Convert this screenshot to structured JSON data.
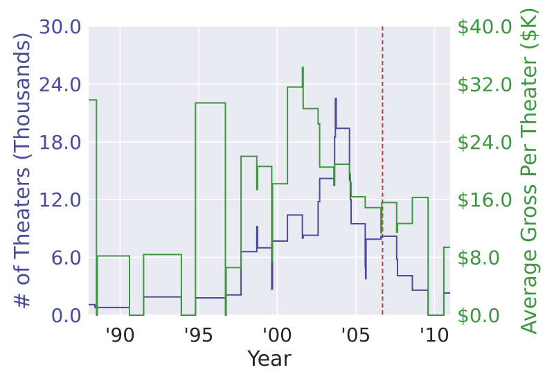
{
  "chart_data": {
    "type": "line",
    "title": "",
    "xlabel": "Year",
    "ylabel_left": "# of Theaters (Thousands)",
    "ylabel_right": "Average Gross Per Theater ($K)",
    "xlim": [
      1988,
      2011
    ],
    "ylim_left": [
      0,
      30
    ],
    "ylim_right": [
      0,
      40
    ],
    "grid": true,
    "x_ticks": [
      {
        "value": 1990,
        "label": "'90"
      },
      {
        "value": 1995,
        "label": "'95"
      },
      {
        "value": 2000,
        "label": "'00"
      },
      {
        "value": 2005,
        "label": "'05"
      },
      {
        "value": 2010,
        "label": "'10"
      }
    ],
    "y_ticks_left": [
      {
        "value": 0,
        "label": "0.0"
      },
      {
        "value": 6,
        "label": "6.0"
      },
      {
        "value": 12,
        "label": "12.0"
      },
      {
        "value": 18,
        "label": "18.0"
      },
      {
        "value": 24,
        "label": "24.0"
      },
      {
        "value": 30,
        "label": "30.0"
      }
    ],
    "y_ticks_right": [
      {
        "value": 0,
        "label": "$0.0"
      },
      {
        "value": 8,
        "label": "$8.0"
      },
      {
        "value": 16,
        "label": "$16.0"
      },
      {
        "value": 24,
        "label": "$24.0"
      },
      {
        "value": 32,
        "label": "$32.0"
      },
      {
        "value": 40,
        "label": "$40.0"
      }
    ],
    "reference_line": {
      "x": 2006.7,
      "style": "dashed",
      "color": "#b5403b"
    },
    "series": [
      {
        "name": "# of Theaters (Thousands)",
        "axis": "left",
        "color": "#4b4b9c",
        "points": [
          [
            1988.0,
            1.1
          ],
          [
            1988.4,
            1.1
          ],
          [
            1988.4,
            0.8
          ],
          [
            1990.6,
            0.8
          ],
          [
            1990.6,
            0.0
          ],
          [
            1991.5,
            0.0
          ],
          [
            1991.5,
            1.9
          ],
          [
            1993.9,
            1.9
          ],
          [
            1993.9,
            0.0
          ],
          [
            1994.8,
            0.0
          ],
          [
            1994.8,
            1.8
          ],
          [
            1996.7,
            1.8
          ],
          [
            1996.7,
            2.1
          ],
          [
            1997.7,
            2.1
          ],
          [
            1997.7,
            6.6
          ],
          [
            1998.7,
            6.6
          ],
          [
            1998.7,
            9.2
          ],
          [
            1998.75,
            9.2
          ],
          [
            1998.75,
            7.0
          ],
          [
            1999.65,
            7.0
          ],
          [
            1999.65,
            2.7
          ],
          [
            1999.7,
            2.7
          ],
          [
            1999.7,
            7.7
          ],
          [
            2000.65,
            7.7
          ],
          [
            2000.65,
            10.4
          ],
          [
            2001.6,
            10.4
          ],
          [
            2001.6,
            8.0
          ],
          [
            2001.65,
            8.0
          ],
          [
            2001.65,
            8.3
          ],
          [
            2002.6,
            8.3
          ],
          [
            2002.6,
            11.8
          ],
          [
            2002.7,
            11.8
          ],
          [
            2002.7,
            14.2
          ],
          [
            2003.6,
            14.2
          ],
          [
            2003.6,
            13.5
          ],
          [
            2003.65,
            13.5
          ],
          [
            2003.65,
            18.5
          ],
          [
            2003.7,
            18.5
          ],
          [
            2003.7,
            22.5
          ],
          [
            2003.75,
            22.5
          ],
          [
            2003.75,
            19.4
          ],
          [
            2004.6,
            19.4
          ],
          [
            2004.6,
            14.0
          ],
          [
            2004.65,
            14.0
          ],
          [
            2004.65,
            12.0
          ],
          [
            2004.7,
            12.0
          ],
          [
            2004.7,
            9.5
          ],
          [
            2005.6,
            9.5
          ],
          [
            2005.6,
            5.0
          ],
          [
            2005.62,
            5.0
          ],
          [
            2005.62,
            3.8
          ],
          [
            2005.65,
            3.8
          ],
          [
            2005.65,
            7.9
          ],
          [
            2006.6,
            7.9
          ],
          [
            2006.6,
            8.2
          ],
          [
            2007.6,
            8.2
          ],
          [
            2007.6,
            5.8
          ],
          [
            2007.65,
            5.8
          ],
          [
            2007.65,
            4.1
          ],
          [
            2008.6,
            4.1
          ],
          [
            2008.6,
            2.6
          ],
          [
            2009.6,
            2.6
          ],
          [
            2009.6,
            0.0
          ],
          [
            2010.6,
            0.0
          ],
          [
            2010.6,
            2.3
          ],
          [
            2011.0,
            2.3
          ]
        ]
      },
      {
        "name": "Average Gross Per Theater ($K)",
        "axis": "right",
        "color": "#3f9640",
        "points": [
          [
            1988.0,
            29.8
          ],
          [
            1988.5,
            29.8
          ],
          [
            1988.5,
            0.0
          ],
          [
            1988.55,
            0.0
          ],
          [
            1988.55,
            8.2
          ],
          [
            1990.6,
            8.2
          ],
          [
            1990.6,
            0.0
          ],
          [
            1991.5,
            0.0
          ],
          [
            1991.5,
            8.4
          ],
          [
            1993.9,
            8.4
          ],
          [
            1993.9,
            0.0
          ],
          [
            1994.8,
            0.0
          ],
          [
            1994.8,
            29.4
          ],
          [
            1996.7,
            29.4
          ],
          [
            1996.7,
            0.0
          ],
          [
            1996.75,
            0.0
          ],
          [
            1996.75,
            6.6
          ],
          [
            1997.7,
            6.6
          ],
          [
            1997.7,
            22.0
          ],
          [
            1998.7,
            22.0
          ],
          [
            1998.7,
            17.4
          ],
          [
            1998.75,
            17.4
          ],
          [
            1998.75,
            20.6
          ],
          [
            1999.65,
            20.6
          ],
          [
            1999.65,
            7.4
          ],
          [
            1999.7,
            7.4
          ],
          [
            1999.7,
            18.2
          ],
          [
            2000.65,
            18.2
          ],
          [
            2000.65,
            31.6
          ],
          [
            2001.6,
            31.6
          ],
          [
            2001.6,
            34.3
          ],
          [
            2001.65,
            34.3
          ],
          [
            2001.65,
            28.6
          ],
          [
            2002.6,
            28.6
          ],
          [
            2002.6,
            26.5
          ],
          [
            2002.7,
            26.5
          ],
          [
            2002.7,
            20.5
          ],
          [
            2003.6,
            20.5
          ],
          [
            2003.6,
            18.1
          ],
          [
            2003.65,
            18.1
          ],
          [
            2003.65,
            20.9
          ],
          [
            2004.6,
            20.9
          ],
          [
            2004.6,
            19.6
          ],
          [
            2004.65,
            19.6
          ],
          [
            2004.65,
            18.4
          ],
          [
            2004.7,
            18.4
          ],
          [
            2004.7,
            16.4
          ],
          [
            2005.6,
            16.4
          ],
          [
            2005.6,
            14.9
          ],
          [
            2006.6,
            14.9
          ],
          [
            2006.6,
            11.4
          ],
          [
            2006.65,
            11.4
          ],
          [
            2006.65,
            15.6
          ],
          [
            2007.6,
            15.6
          ],
          [
            2007.6,
            11.5
          ],
          [
            2007.65,
            11.5
          ],
          [
            2007.65,
            12.7
          ],
          [
            2008.6,
            12.7
          ],
          [
            2008.6,
            16.3
          ],
          [
            2009.6,
            16.3
          ],
          [
            2009.6,
            0.0
          ],
          [
            2010.6,
            0.0
          ],
          [
            2010.6,
            9.4
          ],
          [
            2011.0,
            9.4
          ]
        ]
      }
    ]
  }
}
